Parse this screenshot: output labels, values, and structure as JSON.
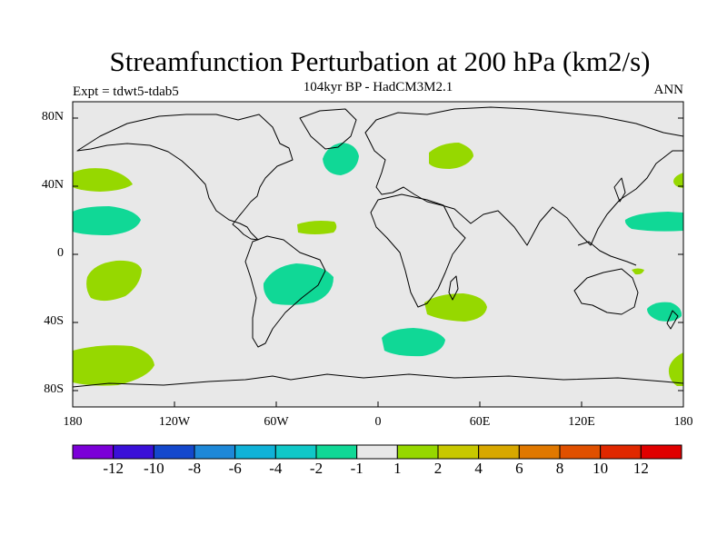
{
  "title": "Streamfunction Perturbation at 200 hPa (km2/s)",
  "subtitle": "104kyr BP - HadCM3M2.1",
  "expt_label": "Expt = tdwt5-tdab5",
  "season_label": "ANN",
  "lat_labels": [
    "80N",
    "40N",
    "0",
    "40S",
    "80S"
  ],
  "lon_labels": [
    "180",
    "120W",
    "60W",
    "0",
    "60E",
    "120E",
    "180"
  ],
  "colorbar": {
    "colors": [
      "#7b00d8",
      "#3a10d8",
      "#1448cc",
      "#1e88d8",
      "#10b2d8",
      "#10c8c8",
      "#10d896",
      "#e8e8e8",
      "#96d800",
      "#c8c800",
      "#d8a800",
      "#e07800",
      "#e05000",
      "#e02800",
      "#e00000"
    ],
    "labels": [
      "-12",
      "-10",
      "-8",
      "-6",
      "-4",
      "-2",
      "-1",
      "1",
      "2",
      "4",
      "6",
      "8",
      "10",
      "12"
    ]
  },
  "anomaly_colors": {
    "negative": "#10d896",
    "positive": "#96d800",
    "background": "#e8e8e8"
  }
}
